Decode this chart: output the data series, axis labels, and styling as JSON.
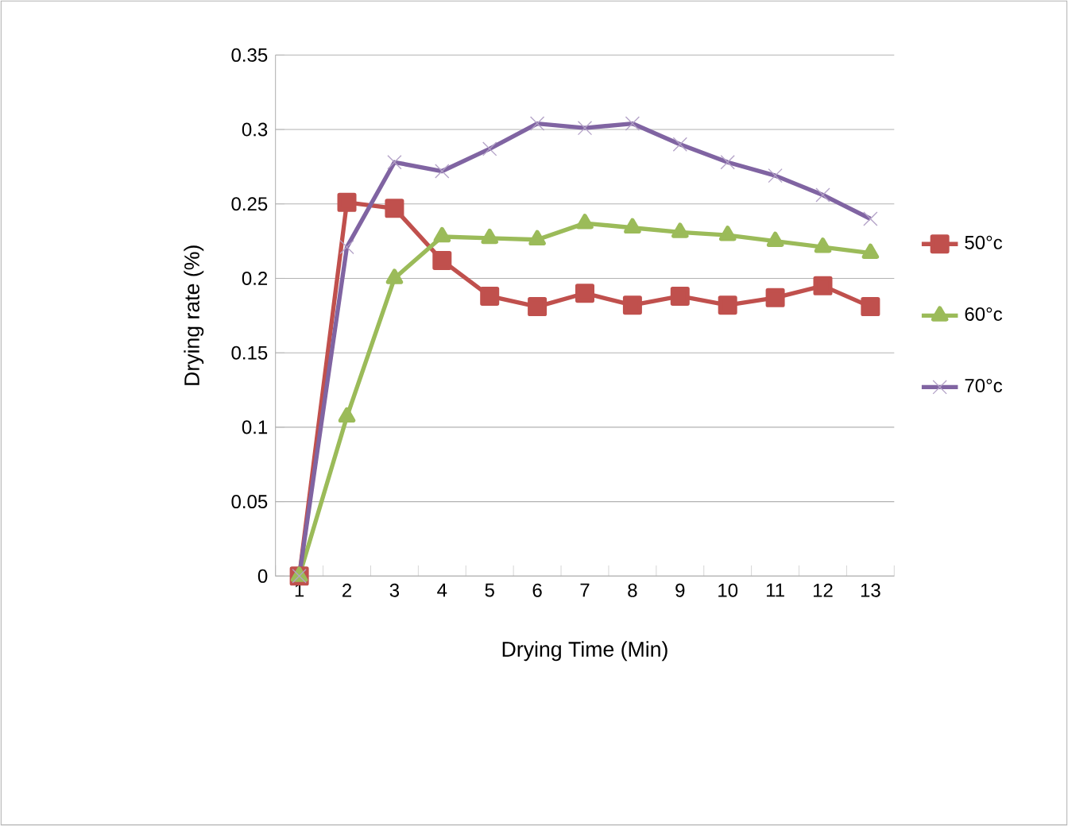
{
  "chart_data": {
    "type": "line",
    "xlabel": "Drying Time (Min)",
    "ylabel": "Drying rate  (%)",
    "categories": [
      "1",
      "2",
      "3",
      "4",
      "5",
      "6",
      "7",
      "8",
      "9",
      "10",
      "11",
      "12",
      "13"
    ],
    "series": [
      {
        "name": "50°c",
        "color": "#c0504d",
        "marker": "square",
        "values": [
          0,
          0.251,
          0.247,
          0.212,
          0.188,
          0.181,
          0.19,
          0.182,
          0.188,
          0.182,
          0.187,
          0.195,
          0.181
        ]
      },
      {
        "name": "60°c",
        "color": "#9bbb59",
        "marker": "triangle",
        "values": [
          0,
          0.107,
          0.2,
          0.228,
          0.227,
          0.226,
          0.237,
          0.234,
          0.231,
          0.229,
          0.225,
          0.221,
          0.217
        ]
      },
      {
        "name": "70°c",
        "color": "#8064a2",
        "marker": "cross",
        "values": [
          0,
          0.221,
          0.278,
          0.272,
          0.287,
          0.304,
          0.301,
          0.304,
          0.29,
          0.278,
          0.269,
          0.256,
          0.24
        ]
      }
    ],
    "ylim": [
      0,
      0.35
    ],
    "yticks": [
      0,
      0.05,
      0.1,
      0.15,
      0.2,
      0.25,
      0.3,
      0.35
    ],
    "grid": "y",
    "legend": "right"
  }
}
